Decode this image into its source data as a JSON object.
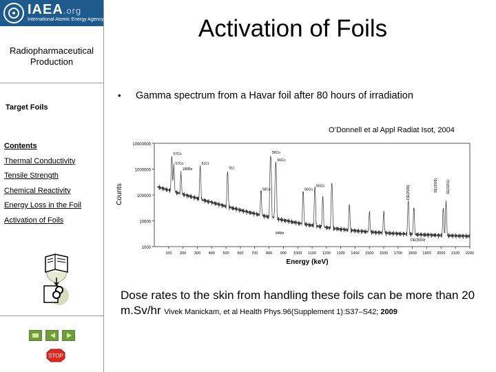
{
  "logo": {
    "name": "IAEA",
    "domain": ".org",
    "subtitle": "International Atomic Energy Agency"
  },
  "sidebar": {
    "title": "Radiopharmaceutical Production",
    "section": "Target Foils",
    "nav": [
      {
        "label": "Contents",
        "current": true
      },
      {
        "label": "Thermal Conductivity"
      },
      {
        "label": "Tensile Strength"
      },
      {
        "label": "Chemical Reactivity"
      },
      {
        "label": "Energy Loss in the Foil"
      },
      {
        "label": "Activation of Foils"
      }
    ],
    "stop_label": "STOP"
  },
  "slide": {
    "title": "Activation of Foils",
    "bullet": "Gamma spectrum from a Havar foil after 80 hours of irradiation",
    "citation": "O’Donnell et al Appl Radiat Isot, 2004",
    "dose_text": "Dose rates to the skin from handling these foils can be more than 20 m.Sv/hr",
    "dose_cite": "Vivek Manickam, et al Health Phys.96(Supplement 1):S37–S42; ",
    "dose_year": "2009"
  },
  "chart_data": {
    "type": "line",
    "title": "",
    "xlabel": "Energy (keV)",
    "ylabel": "Counts",
    "y_scale": "log",
    "xlim": [
      0,
      2200
    ],
    "ylim": [
      1000,
      10000000
    ],
    "x_ticks": [
      100,
      200,
      300,
      400,
      500,
      600,
      700,
      800,
      900,
      1000,
      1100,
      1200,
      1300,
      1400,
      1500,
      1600,
      1700,
      1800,
      1900,
      2000,
      2100,
      2200
    ],
    "y_ticks": [
      1000,
      10000,
      100000,
      1000000,
      10000000
    ],
    "y_tick_labels": [
      "1000",
      "10000",
      "100000",
      "1000000",
      "10000000"
    ],
    "peak_labels": [
      {
        "x": 122,
        "y": 3500000,
        "label": "57Co"
      },
      {
        "x": 136,
        "y": 1500000,
        "label": "57Co"
      },
      {
        "x": 186,
        "y": 900000,
        "label": "185Re"
      },
      {
        "x": 320,
        "y": 1500000,
        "label": "51Cr"
      },
      {
        "x": 511,
        "y": 1000000,
        "label": "511"
      },
      {
        "x": 811,
        "y": 4000000,
        "label": "58Co"
      },
      {
        "x": 847,
        "y": 2000000,
        "label": "56Co"
      },
      {
        "x": 835,
        "y": 3000,
        "label": "54Mn"
      },
      {
        "x": 744,
        "y": 150000,
        "label": "58Co"
      },
      {
        "x": 1038,
        "y": 150000,
        "label": "56Co"
      },
      {
        "x": 1120,
        "y": 200000,
        "label": "56Co"
      }
    ],
    "side_labels": [
      "DE(2598)",
      "SE(3009)",
      "SE(3201)",
      "DE(3009)"
    ]
  }
}
